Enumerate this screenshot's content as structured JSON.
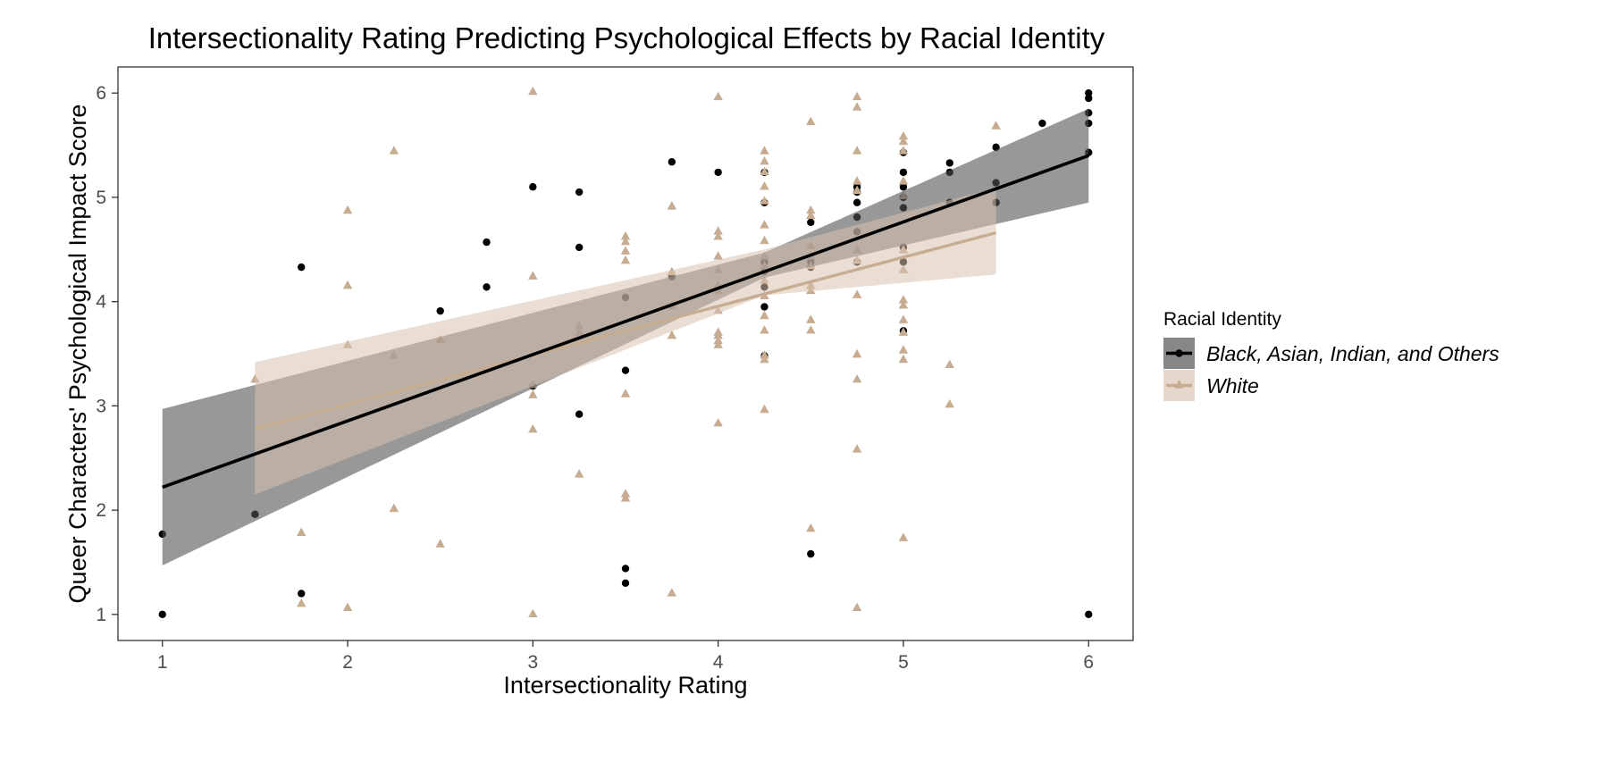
{
  "chart_data": {
    "type": "scatter",
    "title": "Intersectionality Rating Predicting Psychological Effects by Racial Identity",
    "xlabel": "Intersectionality Rating",
    "ylabel": "Queer Characters' Psychological Impact Score",
    "xlim": [
      0.76,
      6.24
    ],
    "ylim": [
      0.75,
      6.25
    ],
    "xticks": [
      1,
      2,
      3,
      4,
      5,
      6
    ],
    "yticks": [
      1,
      2,
      3,
      4,
      5,
      6
    ],
    "grid": false,
    "legend": {
      "title": "Racial Identity",
      "position": "right"
    },
    "series": [
      {
        "name": "Black, Asian, Indian, and Others",
        "marker": "circle",
        "color": "#000000",
        "band_color": "#545454",
        "band_opacity": 0.6,
        "points": [
          [
            1,
            1.0
          ],
          [
            1,
            1.77
          ],
          [
            1.5,
            1.96
          ],
          [
            1.75,
            4.33
          ],
          [
            1.75,
            1.2
          ],
          [
            2.5,
            3.91
          ],
          [
            2.75,
            4.57
          ],
          [
            2.75,
            4.14
          ],
          [
            3,
            5.1
          ],
          [
            3,
            3.19
          ],
          [
            3.25,
            5.05
          ],
          [
            3.25,
            4.52
          ],
          [
            3.25,
            2.92
          ],
          [
            3.5,
            4.04
          ],
          [
            3.5,
            3.34
          ],
          [
            3.5,
            1.44
          ],
          [
            3.5,
            1.3
          ],
          [
            3.75,
            5.34
          ],
          [
            3.75,
            4.24
          ],
          [
            4,
            5.24
          ],
          [
            4.25,
            5.24
          ],
          [
            4.25,
            4.95
          ],
          [
            4.25,
            4.14
          ],
          [
            4.25,
            3.95
          ],
          [
            4.25,
            4.38
          ],
          [
            4.25,
            4.29
          ],
          [
            4.25,
            3.48
          ],
          [
            4.5,
            4.76
          ],
          [
            4.5,
            4.33
          ],
          [
            4.5,
            4.38
          ],
          [
            4.5,
            1.58
          ],
          [
            4.75,
            5.05
          ],
          [
            4.75,
            5.1
          ],
          [
            4.75,
            4.95
          ],
          [
            4.75,
            4.81
          ],
          [
            4.75,
            4.67
          ],
          [
            4.75,
            4.38
          ],
          [
            5,
            5.43
          ],
          [
            5,
            5.24
          ],
          [
            5,
            5.1
          ],
          [
            5,
            5.0
          ],
          [
            5,
            4.9
          ],
          [
            5,
            4.52
          ],
          [
            5,
            4.38
          ],
          [
            5,
            3.72
          ],
          [
            5.25,
            5.33
          ],
          [
            5.25,
            5.24
          ],
          [
            5.25,
            4.95
          ],
          [
            5.5,
            5.48
          ],
          [
            5.5,
            5.14
          ],
          [
            5.5,
            4.95
          ],
          [
            5.75,
            5.71
          ],
          [
            6,
            6.0
          ],
          [
            6,
            5.95
          ],
          [
            6,
            5.81
          ],
          [
            6,
            5.71
          ],
          [
            6,
            5.43
          ],
          [
            6,
            1.0
          ]
        ],
        "fit": {
          "x": [
            1,
            6
          ],
          "y": [
            2.22,
            5.4
          ]
        },
        "band": {
          "x": [
            1,
            4.25,
            6
          ],
          "upper": [
            2.97,
            4.47,
            5.85
          ],
          "lower": [
            1.47,
            4.23,
            4.95
          ]
        }
      },
      {
        "name": "White",
        "marker": "triangle",
        "color": "#c8ac92",
        "band_color": "#d9c2b0",
        "band_opacity": 0.55,
        "points": [
          [
            1.5,
            3.25
          ],
          [
            1.75,
            1.78
          ],
          [
            1.75,
            1.1
          ],
          [
            2,
            4.87
          ],
          [
            2,
            4.15
          ],
          [
            2,
            3.58
          ],
          [
            2,
            1.06
          ],
          [
            2.25,
            5.44
          ],
          [
            2.25,
            3.48
          ],
          [
            2.25,
            2.01
          ],
          [
            2.5,
            3.63
          ],
          [
            2.5,
            1.67
          ],
          [
            3,
            6.01
          ],
          [
            3,
            4.24
          ],
          [
            3,
            3.2
          ],
          [
            3,
            3.1
          ],
          [
            3,
            2.77
          ],
          [
            3,
            1.0
          ],
          [
            3.25,
            3.76
          ],
          [
            3.25,
            3.7
          ],
          [
            3.25,
            2.34
          ],
          [
            3.5,
            4.62
          ],
          [
            3.5,
            4.57
          ],
          [
            3.5,
            4.48
          ],
          [
            3.5,
            4.39
          ],
          [
            3.5,
            3.11
          ],
          [
            3.5,
            2.15
          ],
          [
            3.5,
            2.11
          ],
          [
            3.75,
            4.91
          ],
          [
            3.75,
            4.28
          ],
          [
            3.75,
            3.95
          ],
          [
            3.75,
            3.67
          ],
          [
            3.75,
            1.2
          ],
          [
            4,
            5.96
          ],
          [
            4,
            4.67
          ],
          [
            4,
            4.62
          ],
          [
            4,
            4.43
          ],
          [
            4,
            4.3
          ],
          [
            4,
            4.15
          ],
          [
            4,
            4.1
          ],
          [
            4,
            3.91
          ],
          [
            4,
            3.7
          ],
          [
            4,
            3.67
          ],
          [
            4,
            3.62
          ],
          [
            4,
            3.58
          ],
          [
            4,
            2.83
          ],
          [
            4.25,
            5.44
          ],
          [
            4.25,
            5.34
          ],
          [
            4.25,
            5.24
          ],
          [
            4.25,
            5.1
          ],
          [
            4.25,
            4.96
          ],
          [
            4.25,
            4.73
          ],
          [
            4.25,
            4.58
          ],
          [
            4.25,
            4.43
          ],
          [
            4.25,
            4.34
          ],
          [
            4.25,
            4.2
          ],
          [
            4.25,
            4.05
          ],
          [
            4.25,
            3.86
          ],
          [
            4.25,
            3.72
          ],
          [
            4.25,
            3.48
          ],
          [
            4.25,
            3.44
          ],
          [
            4.25,
            2.96
          ],
          [
            4.5,
            5.72
          ],
          [
            4.5,
            4.87
          ],
          [
            4.5,
            4.82
          ],
          [
            4.5,
            4.53
          ],
          [
            4.5,
            4.43
          ],
          [
            4.5,
            4.34
          ],
          [
            4.5,
            4.15
          ],
          [
            4.5,
            4.1
          ],
          [
            4.5,
            3.82
          ],
          [
            4.5,
            3.72
          ],
          [
            4.5,
            1.82
          ],
          [
            4.75,
            5.96
          ],
          [
            4.75,
            5.86
          ],
          [
            4.75,
            5.44
          ],
          [
            4.75,
            5.15
          ],
          [
            4.75,
            5.06
          ],
          [
            4.75,
            4.49
          ],
          [
            4.75,
            4.39
          ],
          [
            4.75,
            4.06
          ],
          [
            4.75,
            3.49
          ],
          [
            4.75,
            3.25
          ],
          [
            4.75,
            2.58
          ],
          [
            4.75,
            1.06
          ],
          [
            5,
            5.58
          ],
          [
            5,
            5.53
          ],
          [
            5,
            5.44
          ],
          [
            5,
            5.15
          ],
          [
            5,
            5.01
          ],
          [
            5,
            4.49
          ],
          [
            5,
            4.3
          ],
          [
            5,
            4.01
          ],
          [
            5,
            3.96
          ],
          [
            5,
            3.82
          ],
          [
            5,
            3.7
          ],
          [
            5,
            3.53
          ],
          [
            5,
            3.44
          ],
          [
            5,
            1.73
          ],
          [
            5.25,
            3.39
          ],
          [
            5.25,
            3.01
          ],
          [
            5.5,
            5.68
          ]
        ],
        "fit": {
          "x": [
            1.5,
            5.5
          ],
          "y": [
            2.78,
            4.66
          ]
        },
        "band": {
          "x": [
            1.5,
            4.25,
            5.5
          ],
          "upper": [
            3.42,
            4.5,
            5.09
          ],
          "lower": [
            2.15,
            4.06,
            4.26
          ]
        }
      }
    ]
  }
}
